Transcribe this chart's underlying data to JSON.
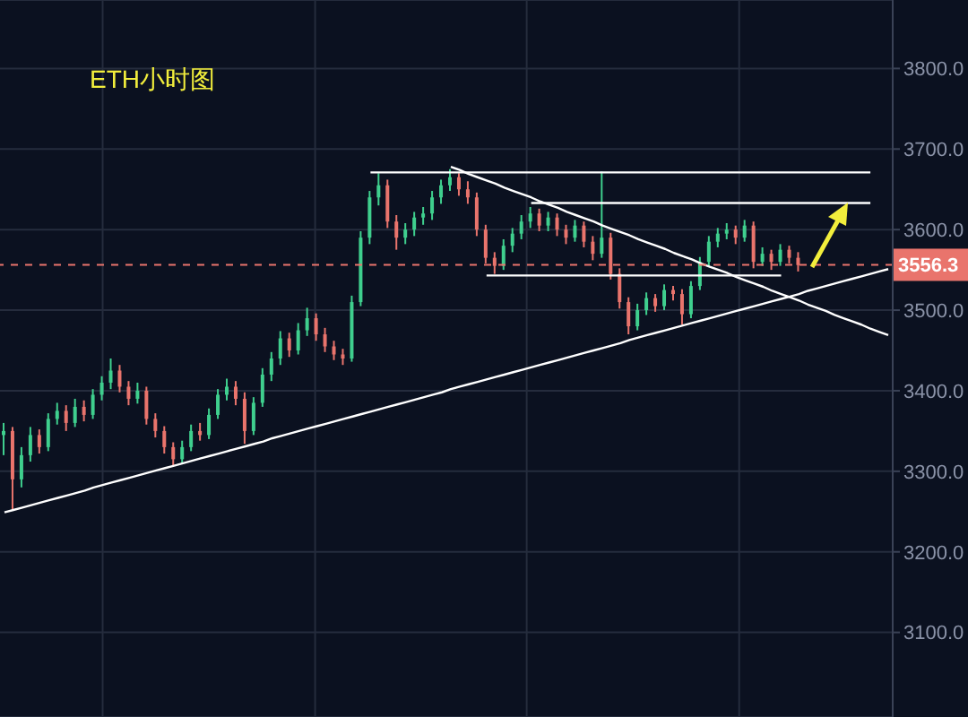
{
  "chart_data": {
    "type": "candlestick",
    "title": "ETH小时图",
    "categories": [
      null,
      null,
      null,
      null,
      null,
      null,
      null,
      null,
      null,
      null,
      null,
      null,
      null,
      null,
      null,
      null,
      null,
      null,
      null,
      null,
      null,
      null,
      null,
      null,
      null,
      null,
      null,
      null,
      null,
      null,
      null,
      null,
      null,
      null,
      null,
      null,
      null,
      null,
      null,
      null,
      null,
      null,
      null,
      null,
      null,
      null,
      null,
      null,
      null,
      null,
      null,
      null,
      null,
      null,
      null,
      null,
      null,
      null,
      null,
      null,
      null,
      null,
      null,
      null,
      null,
      null,
      null,
      null,
      null,
      null,
      null,
      null,
      null,
      null,
      null,
      null,
      null,
      null,
      null,
      null,
      null,
      null,
      null,
      null,
      null,
      null,
      null,
      null,
      null,
      null,
      null,
      null,
      null,
      null,
      null,
      null,
      null,
      null,
      null,
      null
    ],
    "ohlc": [
      [
        3345,
        3360,
        3320,
        3350
      ],
      [
        3350,
        3355,
        3252,
        3290
      ],
      [
        3290,
        3330,
        3280,
        3320
      ],
      [
        3320,
        3355,
        3312,
        3345
      ],
      [
        3345,
        3352,
        3322,
        3330
      ],
      [
        3330,
        3372,
        3325,
        3365
      ],
      [
        3365,
        3385,
        3358,
        3375
      ],
      [
        3375,
        3382,
        3350,
        3360
      ],
      [
        3360,
        3390,
        3355,
        3380
      ],
      [
        3380,
        3388,
        3362,
        3370
      ],
      [
        3370,
        3402,
        3365,
        3395
      ],
      [
        3395,
        3418,
        3388,
        3410
      ],
      [
        3410,
        3440,
        3402,
        3425
      ],
      [
        3425,
        3432,
        3398,
        3405
      ],
      [
        3405,
        3412,
        3382,
        3390
      ],
      [
        3390,
        3410,
        3384,
        3400
      ],
      [
        3400,
        3405,
        3358,
        3365
      ],
      [
        3365,
        3372,
        3342,
        3350
      ],
      [
        3350,
        3356,
        3322,
        3330
      ],
      [
        3330,
        3336,
        3307,
        3315
      ],
      [
        3315,
        3338,
        3310,
        3330
      ],
      [
        3330,
        3358,
        3325,
        3350
      ],
      [
        3350,
        3360,
        3338,
        3345
      ],
      [
        3345,
        3378,
        3340,
        3370
      ],
      [
        3370,
        3402,
        3365,
        3395
      ],
      [
        3395,
        3415,
        3388,
        3405
      ],
      [
        3405,
        3412,
        3382,
        3390
      ],
      [
        3390,
        3398,
        3334,
        3350
      ],
      [
        3350,
        3392,
        3345,
        3385
      ],
      [
        3385,
        3428,
        3380,
        3420
      ],
      [
        3420,
        3448,
        3412,
        3440
      ],
      [
        3440,
        3474,
        3432,
        3465
      ],
      [
        3465,
        3472,
        3442,
        3450
      ],
      [
        3450,
        3484,
        3445,
        3475
      ],
      [
        3475,
        3503,
        3468,
        3490
      ],
      [
        3490,
        3496,
        3462,
        3470
      ],
      [
        3470,
        3478,
        3448,
        3455
      ],
      [
        3455,
        3462,
        3438,
        3445
      ],
      [
        3445,
        3452,
        3432,
        3440
      ],
      [
        3440,
        3518,
        3436,
        3510
      ],
      [
        3510,
        3598,
        3505,
        3590
      ],
      [
        3590,
        3648,
        3582,
        3640
      ],
      [
        3640,
        3670,
        3630,
        3655
      ],
      [
        3655,
        3662,
        3602,
        3610
      ],
      [
        3610,
        3618,
        3575,
        3590
      ],
      [
        3590,
        3608,
        3582,
        3600
      ],
      [
        3600,
        3622,
        3592,
        3615
      ],
      [
        3615,
        3628,
        3606,
        3620
      ],
      [
        3620,
        3648,
        3612,
        3640
      ],
      [
        3640,
        3662,
        3632,
        3655
      ],
      [
        3655,
        3675,
        3648,
        3665
      ],
      [
        3665,
        3670,
        3642,
        3650
      ],
      [
        3650,
        3660,
        3632,
        3640
      ],
      [
        3640,
        3646,
        3592,
        3600
      ],
      [
        3600,
        3606,
        3558,
        3565
      ],
      [
        3565,
        3572,
        3545,
        3555
      ],
      [
        3555,
        3588,
        3550,
        3580
      ],
      [
        3580,
        3602,
        3572,
        3595
      ],
      [
        3595,
        3618,
        3588,
        3610
      ],
      [
        3610,
        3628,
        3602,
        3620
      ],
      [
        3620,
        3626,
        3598,
        3605
      ],
      [
        3605,
        3622,
        3598,
        3615
      ],
      [
        3615,
        3620,
        3592,
        3600
      ],
      [
        3600,
        3606,
        3582,
        3590
      ],
      [
        3590,
        3612,
        3585,
        3605
      ],
      [
        3605,
        3610,
        3578,
        3585
      ],
      [
        3585,
        3592,
        3562,
        3570
      ],
      [
        3570,
        3672,
        3565,
        3590
      ],
      [
        3590,
        3596,
        3538,
        3545
      ],
      [
        3545,
        3552,
        3502,
        3510
      ],
      [
        3510,
        3516,
        3470,
        3480
      ],
      [
        3480,
        3508,
        3475,
        3500
      ],
      [
        3500,
        3522,
        3494,
        3515
      ],
      [
        3515,
        3520,
        3498,
        3505
      ],
      [
        3505,
        3532,
        3500,
        3525
      ],
      [
        3525,
        3530,
        3512,
        3520
      ],
      [
        3520,
        3526,
        3482,
        3495
      ],
      [
        3495,
        3536,
        3490,
        3530
      ],
      [
        3530,
        3566,
        3525,
        3560
      ],
      [
        3560,
        3592,
        3555,
        3585
      ],
      [
        3585,
        3602,
        3578,
        3595
      ],
      [
        3595,
        3608,
        3588,
        3600
      ],
      [
        3600,
        3605,
        3582,
        3590
      ],
      [
        3590,
        3612,
        3585,
        3605
      ],
      [
        3605,
        3610,
        3552,
        3560
      ],
      [
        3560,
        3578,
        3555,
        3570
      ],
      [
        3570,
        3575,
        3550,
        3560
      ],
      [
        3560,
        3582,
        3555,
        3575
      ],
      [
        3575,
        3580,
        3558,
        3565
      ],
      [
        3565,
        3572,
        3548,
        3556
      ],
      null,
      null,
      null,
      null,
      null,
      null,
      null,
      null,
      null,
      null
    ],
    "series": [
      {
        "type": "line",
        "color": "#ffffff",
        "values": [
          3249,
          3252,
          3255,
          3258,
          3261,
          3264,
          3267,
          3270,
          3273,
          3276,
          3280,
          3283,
          3286,
          3289,
          3292,
          3295,
          3298,
          3301,
          3304,
          3307,
          3310,
          3313,
          3316,
          3319,
          3322,
          3325,
          3328,
          3331,
          3334,
          3337,
          3341,
          3344,
          3347,
          3350,
          3353,
          3356,
          3359,
          3362,
          3365,
          3368,
          3371,
          3374,
          3377,
          3380,
          3383,
          3386,
          3389,
          3392,
          3395,
          3398,
          3402,
          3405,
          3408,
          3411,
          3414,
          3417,
          3420,
          3423,
          3426,
          3429,
          3432,
          3435,
          3438,
          3441,
          3444,
          3447,
          3450,
          3453,
          3456,
          3459,
          3463,
          3466,
          3469,
          3472,
          3475,
          3478,
          3481,
          3484,
          3487,
          3490,
          3493,
          3496,
          3499,
          3502,
          3505,
          3508,
          3511,
          3514,
          3517,
          3520,
          3524,
          3527,
          3530,
          3533,
          3536,
          3539,
          3542,
          3545,
          3548,
          3551
        ]
      },
      {
        "type": "line",
        "color": "#ffffff",
        "values": [
          null,
          null,
          null,
          null,
          null,
          null,
          null,
          null,
          null,
          null,
          null,
          null,
          null,
          null,
          null,
          null,
          null,
          null,
          null,
          null,
          null,
          null,
          null,
          null,
          null,
          null,
          null,
          null,
          null,
          null,
          null,
          null,
          null,
          null,
          null,
          null,
          null,
          null,
          null,
          null,
          null,
          null,
          null,
          null,
          null,
          null,
          null,
          null,
          null,
          null,
          3678,
          3674,
          3669,
          3665,
          3661,
          3657,
          3652,
          3648,
          3644,
          3640,
          3635,
          3631,
          3627,
          3622,
          3618,
          3614,
          3610,
          3605,
          3601,
          3597,
          3593,
          3588,
          3584,
          3580,
          3576,
          3571,
          3567,
          3563,
          3558,
          3554,
          3550,
          3546,
          3541,
          3537,
          3533,
          3529,
          3524,
          3520,
          3516,
          3512,
          3507,
          3503,
          3499,
          3494,
          3490,
          3486,
          3482,
          3477,
          3473,
          3469
        ]
      },
      {
        "type": "line",
        "color": "#ffffff",
        "values": [
          null,
          null,
          null,
          null,
          null,
          null,
          null,
          null,
          null,
          null,
          null,
          null,
          null,
          null,
          null,
          null,
          null,
          null,
          null,
          null,
          null,
          null,
          null,
          null,
          null,
          null,
          null,
          null,
          null,
          null,
          null,
          null,
          null,
          null,
          null,
          null,
          null,
          null,
          null,
          null,
          null,
          3671,
          3671,
          3671,
          3671,
          3671,
          3671,
          3671,
          3671,
          3671,
          3671,
          3671,
          3671,
          3671,
          3671,
          3671,
          3671,
          3671,
          3671,
          3671,
          3671,
          3671,
          3671,
          3671,
          3671,
          3671,
          3671,
          3671,
          3671,
          3671,
          3671,
          3671,
          3671,
          3671,
          3671,
          3671,
          3671,
          3671,
          3671,
          3671,
          3671,
          3671,
          3671,
          3671,
          3671,
          3671,
          3671,
          3671,
          3671,
          3671,
          3671,
          3671,
          3671,
          3671,
          3671,
          3671,
          3671,
          3671,
          null,
          null
        ]
      },
      {
        "type": "line",
        "color": "#ffffff",
        "values": [
          null,
          null,
          null,
          null,
          null,
          null,
          null,
          null,
          null,
          null,
          null,
          null,
          null,
          null,
          null,
          null,
          null,
          null,
          null,
          null,
          null,
          null,
          null,
          null,
          null,
          null,
          null,
          null,
          null,
          null,
          null,
          null,
          null,
          null,
          null,
          null,
          null,
          null,
          null,
          null,
          null,
          null,
          null,
          null,
          null,
          null,
          null,
          null,
          null,
          null,
          null,
          null,
          null,
          null,
          null,
          null,
          null,
          null,
          null,
          3633,
          3633,
          3633,
          3633,
          3633,
          3633,
          3633,
          3633,
          3633,
          3633,
          3633,
          3633,
          3633,
          3633,
          3633,
          3633,
          3633,
          3633,
          3633,
          3633,
          3633,
          3633,
          3633,
          3633,
          3633,
          3633,
          3633,
          3633,
          3633,
          3633,
          3633,
          3633,
          3633,
          3633,
          3633,
          3633,
          3633,
          3633,
          3633,
          null,
          null
        ]
      },
      {
        "type": "line",
        "color": "#ffffff",
        "values": [
          null,
          null,
          null,
          null,
          null,
          null,
          null,
          null,
          null,
          null,
          null,
          null,
          null,
          null,
          null,
          null,
          null,
          null,
          null,
          null,
          null,
          null,
          null,
          null,
          null,
          null,
          null,
          null,
          null,
          null,
          null,
          null,
          null,
          null,
          null,
          null,
          null,
          null,
          null,
          null,
          null,
          null,
          null,
          null,
          null,
          null,
          null,
          null,
          null,
          null,
          null,
          null,
          null,
          null,
          3543,
          3543,
          3543,
          3543,
          3543,
          3543,
          3543,
          3543,
          3543,
          3543,
          3543,
          3543,
          3543,
          3543,
          3543,
          3543,
          3543,
          3543,
          3543,
          3543,
          3543,
          3543,
          3543,
          3543,
          3543,
          3543,
          3543,
          3543,
          3543,
          3543,
          3543,
          3543,
          3543,
          3543,
          null,
          null,
          null,
          null,
          null,
          null,
          null,
          null,
          null,
          null,
          null,
          null
        ]
      }
    ],
    "ylim": [
      2995,
      3885
    ],
    "yticks": [
      {
        "value": 3100,
        "label": "3100.0"
      },
      {
        "value": 3200,
        "label": "3200.0"
      },
      {
        "value": 3300,
        "label": "3300.0"
      },
      {
        "value": 3400,
        "label": "3400.0"
      },
      {
        "value": 3500,
        "label": "3500.0"
      },
      {
        "value": 3600,
        "label": "3600.0"
      },
      {
        "value": 3700,
        "label": "3700.0"
      },
      {
        "value": 3800,
        "label": "3800.0"
      }
    ],
    "ref_lines": [
      {
        "axis": "y",
        "value": 3556.3,
        "label": "3556.3",
        "color": "#e9746c",
        "line_style": "dashed"
      }
    ],
    "grid": true,
    "tick_labels": "y"
  }
}
